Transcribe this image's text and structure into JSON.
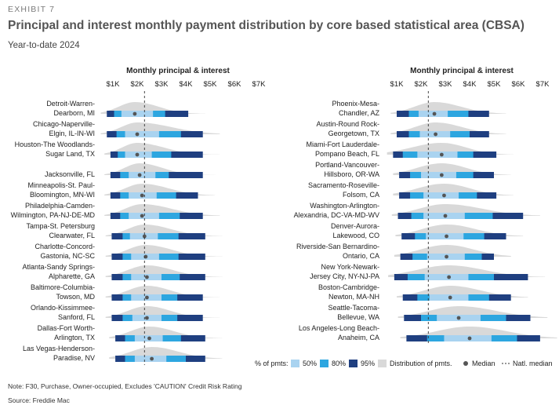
{
  "header": {
    "exhibit": "EXHIBIT 7",
    "title": "Principal and interest monthly payment distribution by core based statistical area (CBSA)",
    "subtitle": "Year-to-date 2024"
  },
  "footer": {
    "note": "Note: F30, Purchase, Owner-occupied, Excludes 'CAUTION' Credit Risk Rating",
    "source": "Source: Freddie Mac"
  },
  "colors": {
    "p50": "#a9d3f0",
    "p80": "#2da6e0",
    "p95": "#1f3f80",
    "distribution": "#d9d9d9",
    "median": "#555555",
    "natl_median_line": "#333333"
  },
  "chart_data": {
    "type": "distribution",
    "axis_title": "Monthly principal & interest",
    "ticks": [
      "$1K",
      "$2K",
      "$3K",
      "$4K",
      "$5K",
      "$6K",
      "$7K"
    ],
    "tick_values": [
      1000,
      2000,
      3000,
      4000,
      5000,
      6000,
      7000
    ],
    "national_median": 2300,
    "legend": {
      "prefix": "% of pmts:",
      "p50": "50%",
      "p80": "80%",
      "p95": "95%",
      "distribution": "Distribution of pmts.",
      "median": "Median",
      "natl_median": "Natl. median"
    },
    "panels": [
      {
        "cbsas": [
          {
            "line1": "Detroit-Warren-",
            "line2": "Dearborn, MI",
            "p95": [
              750,
              4100
            ],
            "p80": [
              1050,
              3150
            ],
            "p50": [
              1350,
              2650
            ],
            "median": 1900
          },
          {
            "line1": "Chicago-Naperville-",
            "line2": "Elgin, IL-IN-WI",
            "p95": [
              750,
              4700
            ],
            "p80": [
              1150,
              3800
            ],
            "p50": [
              1500,
              2900
            ],
            "median": 2000
          },
          {
            "line1": "Houston-The Woodlands-",
            "line2": "Sugar Land, TX",
            "p95": [
              900,
              4700
            ],
            "p80": [
              1200,
              3400
            ],
            "p50": [
              1500,
              2600
            ],
            "median": 2000
          },
          {
            "line1": "",
            "line2": "Jacksonville, FL",
            "p95": [
              900,
              4700
            ],
            "p80": [
              1300,
              3300
            ],
            "p50": [
              1650,
              2750
            ],
            "median": 2100
          },
          {
            "line1": "Minneapolis-St. Paul-",
            "line2": "Bloomington, MN-WI",
            "p95": [
              900,
              4500
            ],
            "p80": [
              1300,
              3600
            ],
            "p50": [
              1650,
              2800
            ],
            "median": 2200
          },
          {
            "line1": "Philadelphia-Camden-",
            "line2": "Wilmington, PA-NJ-DE-MD",
            "p95": [
              900,
              4700
            ],
            "p80": [
              1300,
              3750
            ],
            "p50": [
              1650,
              2900
            ],
            "median": 2200
          },
          {
            "line1": "Tampa-St. Petersburg",
            "line2": "Clearwater, FL",
            "p95": [
              950,
              4800
            ],
            "p80": [
              1400,
              3700
            ],
            "p50": [
              1700,
              2850
            ],
            "median": 2300
          },
          {
            "line1": "Charlotte-Concord-",
            "line2": "Gastonia, NC-SC",
            "p95": [
              950,
              4800
            ],
            "p80": [
              1400,
              3700
            ],
            "p50": [
              1750,
              2900
            ],
            "median": 2350
          },
          {
            "line1": "Atlanta-Sandy Springs-",
            "line2": "Alpharette, GA",
            "p95": [
              950,
              4800
            ],
            "p80": [
              1400,
              3750
            ],
            "p50": [
              1750,
              3000
            ],
            "median": 2400
          },
          {
            "line1": "Baltimore-Columbia-",
            "line2": "Towson, MD",
            "p95": [
              950,
              4700
            ],
            "p80": [
              1400,
              3650
            ],
            "p50": [
              1750,
              3000
            ],
            "median": 2400
          },
          {
            "line1": "Orlando-Kissimmee-",
            "line2": "Sanford, FL",
            "p95": [
              950,
              4700
            ],
            "p80": [
              1400,
              3650
            ],
            "p50": [
              1800,
              3000
            ],
            "median": 2400
          },
          {
            "line1": "Dallas-Fort Worth-",
            "line2": "Arlington, TX",
            "p95": [
              1100,
              4800
            ],
            "p80": [
              1500,
              3800
            ],
            "p50": [
              1900,
              3050
            ],
            "median": 2500
          },
          {
            "line1": "Las Vegas-Henderson-",
            "line2": "Paradise, NV",
            "p95": [
              1100,
              4800
            ],
            "p80": [
              1500,
              4000
            ],
            "p50": [
              1900,
              3200
            ],
            "median": 2600
          }
        ]
      },
      {
        "cbsas": [
          {
            "line1": "Phoenix-Mesa-",
            "line2": "Chandler, AZ",
            "p95": [
              1000,
              4800
            ],
            "p80": [
              1500,
              3950
            ],
            "p50": [
              1900,
              3100
            ],
            "median": 2550
          },
          {
            "line1": "Austin-Round Rock-",
            "line2": "Georgetown, TX",
            "p95": [
              1000,
              4800
            ],
            "p80": [
              1500,
              4000
            ],
            "p50": [
              1950,
              3200
            ],
            "median": 2600
          },
          {
            "line1": "Miami-Fort Lauderdale-",
            "line2": "Pompano Beach, FL",
            "p95": [
              850,
              5100
            ],
            "p80": [
              1250,
              4150
            ],
            "p50": [
              1850,
              3500
            ],
            "median": 2850
          },
          {
            "line1": "Portland-Vancouver-",
            "line2": "Hillsboro, OR-WA",
            "p95": [
              1100,
              5000
            ],
            "p80": [
              1550,
              4150
            ],
            "p50": [
              2000,
              3450
            ],
            "median": 2850
          },
          {
            "line1": "Sacramento-Roseville-",
            "line2": "Folsom, CA",
            "p95": [
              1100,
              5100
            ],
            "p80": [
              1550,
              4300
            ],
            "p50": [
              2100,
              3550
            ],
            "median": 2950
          },
          {
            "line1": "Washington-Arlington-",
            "line2": "Alexandria, DC-VA-MD-WV",
            "p95": [
              1050,
              6200
            ],
            "p80": [
              1600,
              4950
            ],
            "p50": [
              2100,
              3800
            ],
            "median": 3000
          },
          {
            "line1": "Denver-Aurora-",
            "line2": "Lakewood, CO",
            "p95": [
              1200,
              5500
            ],
            "p80": [
              1750,
              4600
            ],
            "p50": [
              2200,
              3750
            ],
            "median": 3050
          },
          {
            "line1": "Riverside-San Bernardino-",
            "line2": "Ontario, CA",
            "p95": [
              1150,
              5000
            ],
            "p80": [
              1650,
              4500
            ],
            "p50": [
              2250,
              3800
            ],
            "median": 3050
          },
          {
            "line1": "New York-Newark-",
            "line2": "Jersey City, NY-NJ-PA",
            "p95": [
              900,
              6400
            ],
            "p80": [
              1450,
              5000
            ],
            "p50": [
              2150,
              3950
            ],
            "median": 3150
          },
          {
            "line1": "Boston-Cambridge-",
            "line2": "Newton, MA-NH",
            "p95": [
              1250,
              5700
            ],
            "p80": [
              1850,
              4800
            ],
            "p50": [
              2350,
              3950
            ],
            "median": 3200
          },
          {
            "line1": "Seattle-Tacoma-",
            "line2": "Bellevue, WA",
            "p95": [
              1300,
              6500
            ],
            "p80": [
              2000,
              5500
            ],
            "p50": [
              2650,
              4450
            ],
            "median": 3550
          },
          {
            "line1": "Los Angeles-Long Beach-",
            "line2": "Anaheim, CA",
            "p95": [
              1400,
              6900
            ],
            "p80": [
              2250,
              5950
            ],
            "p50": [
              2950,
              4900
            ],
            "median": 4000
          }
        ]
      }
    ]
  }
}
